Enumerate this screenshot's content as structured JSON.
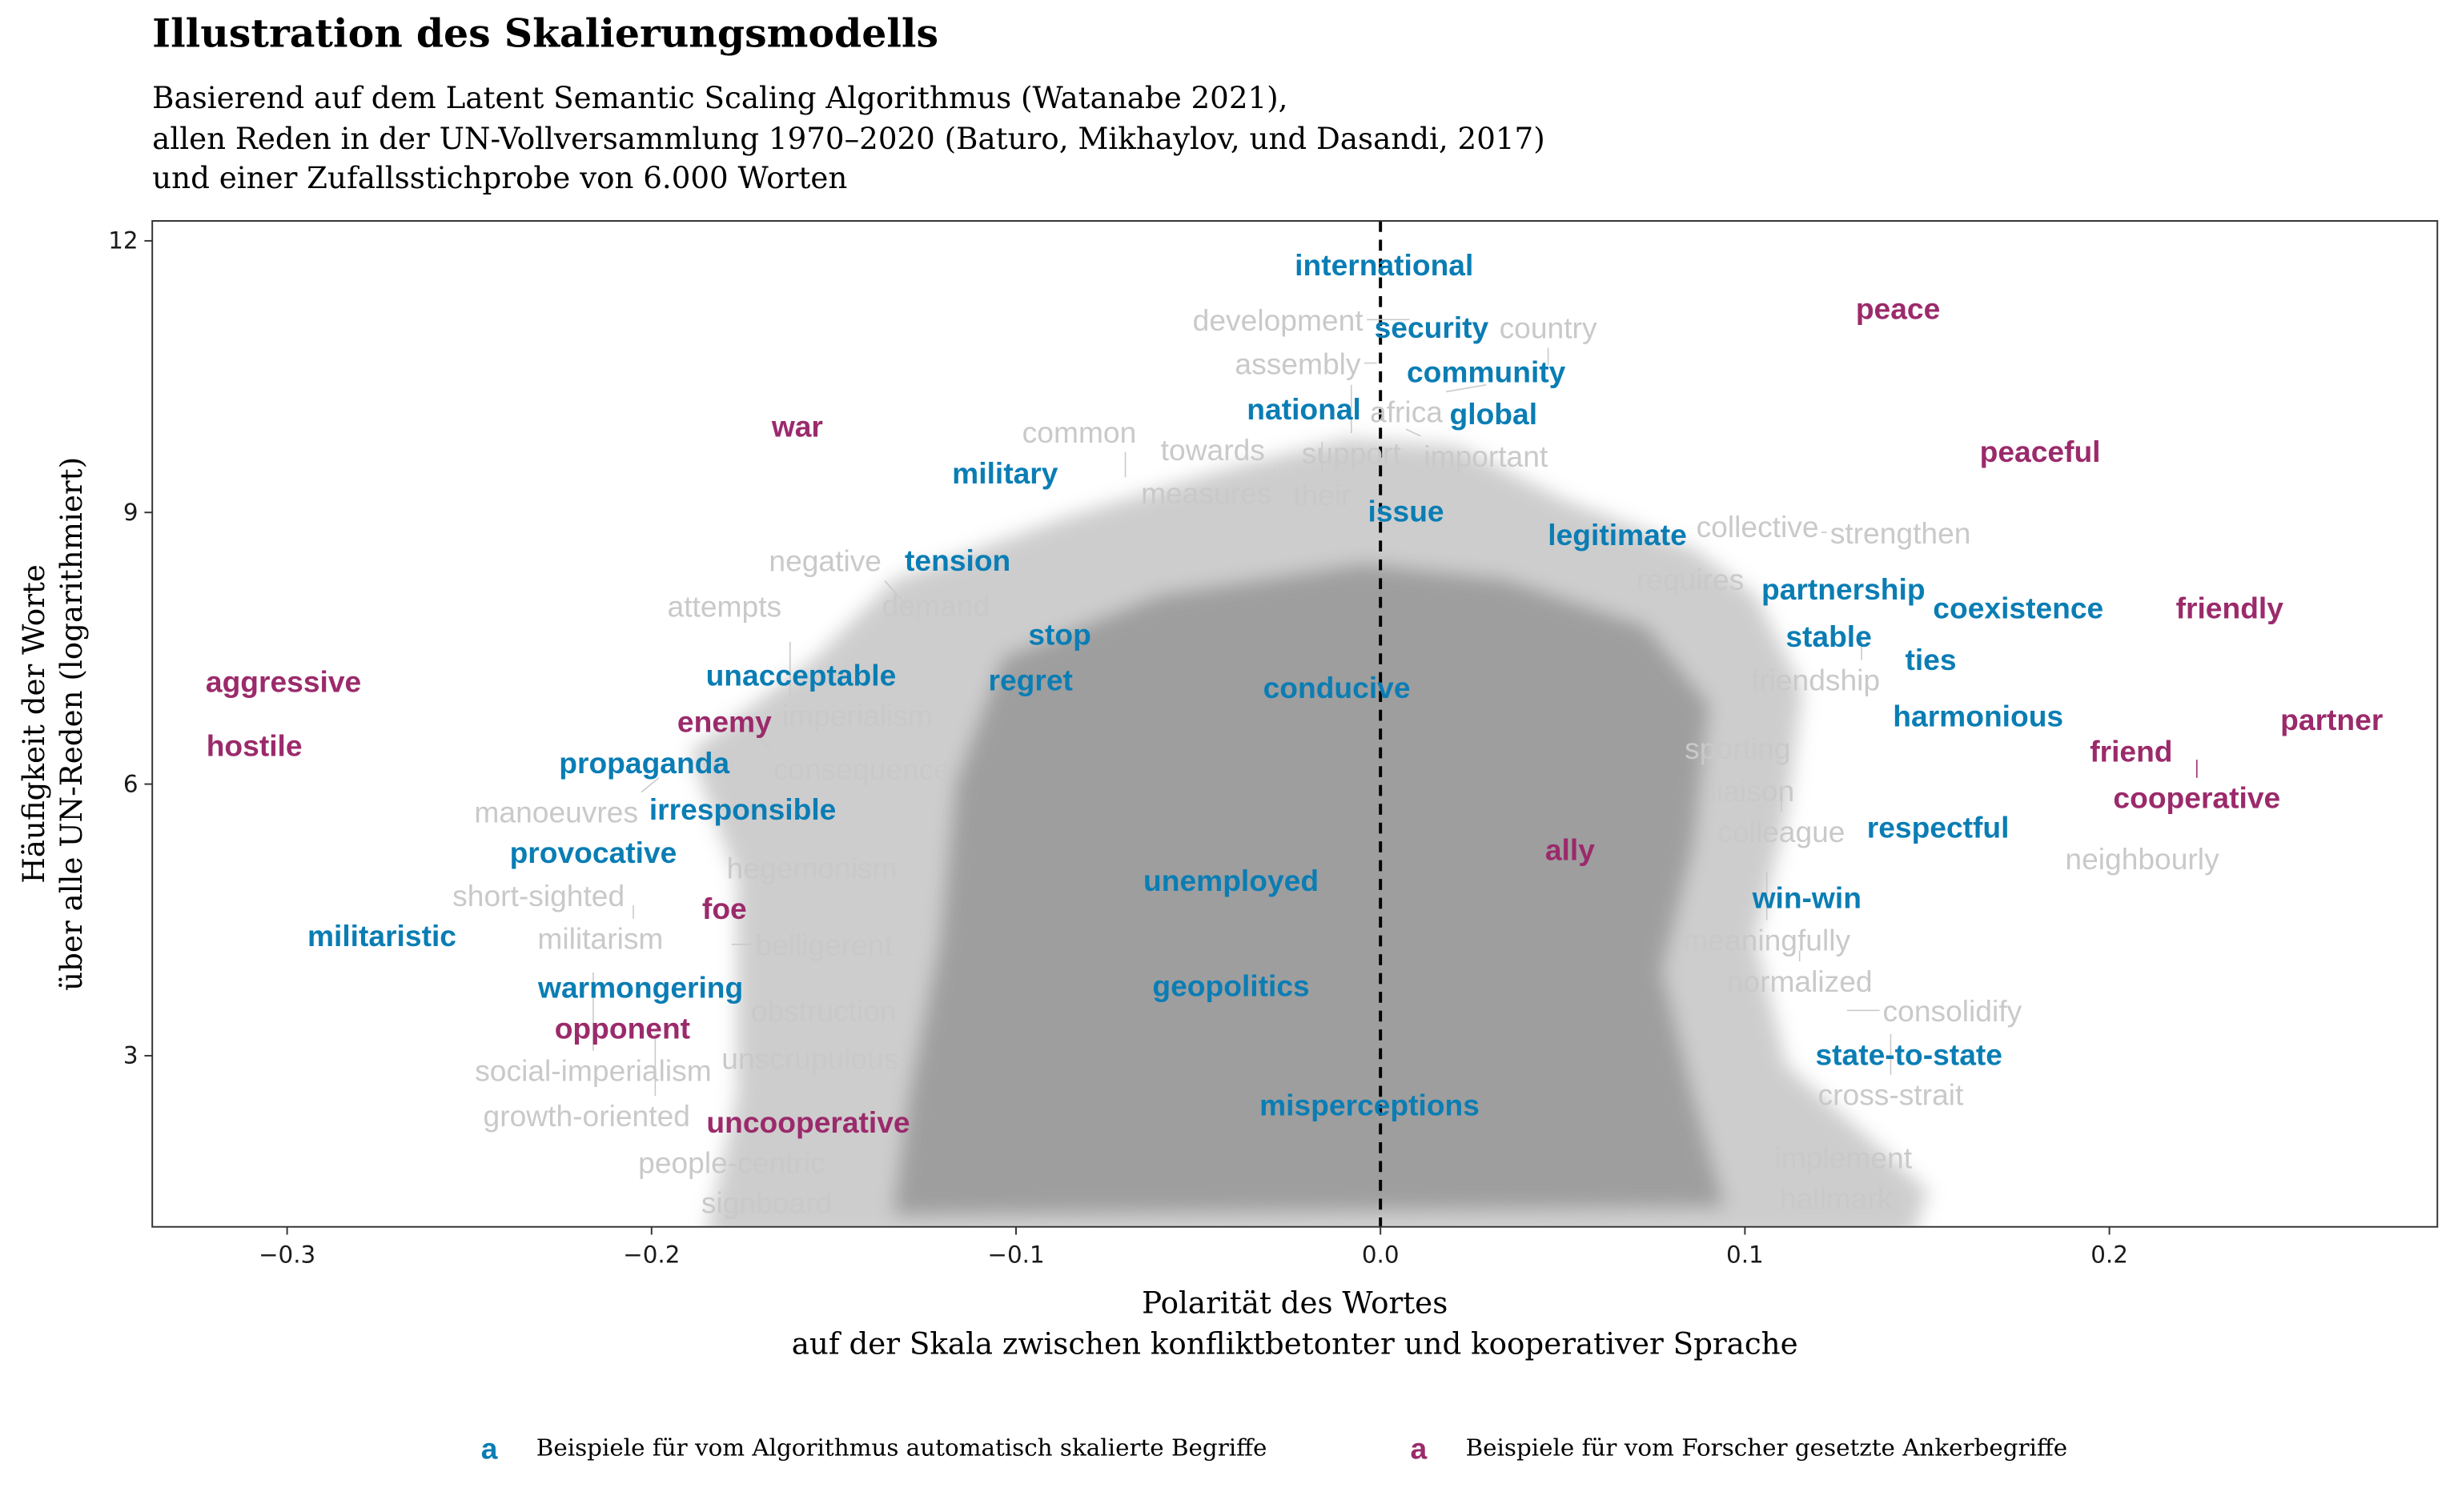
{
  "colors": {
    "auto": "#0a7db4",
    "anchor": "#9b2a6b",
    "other": "#c9c9c9",
    "mass": "#9c9c9c"
  },
  "header": {
    "title": "Illustration des Skalierungsmodells",
    "subtitle_lines": [
      "Basierend auf dem Latent Semantic Scaling Algorithmus (Watanabe 2021),",
      "allen Reden in der UN-Vollversammlung 1970–2020 (Baturo, Mikhaylov, und Dasandi, 2017)",
      "und einer Zufallsstichprobe von 6.000 Worten"
    ]
  },
  "legend": {
    "key_glyph": "a",
    "items": [
      {
        "label": "Beispiele für vom Algorithmus automatisch skalierte Begriffe",
        "group": "auto"
      },
      {
        "label": "Beispiele für vom Forscher gesetzte Ankerbegriffe",
        "group": "anchor"
      }
    ]
  },
  "chart_data": {
    "type": "scatter",
    "subtype": "text-labels",
    "title": "Illustration des Skalierungsmodells",
    "xlabel_lines": [
      "Polarität des Wortes",
      "auf der Skala zwischen konfliktbetonter und kooperativer Sprache"
    ],
    "ylabel_lines": [
      "Häufigkeit der Worte",
      "über alle UN-Reden (logarithmiert)"
    ],
    "xlim": [
      -0.337,
      0.29
    ],
    "ylim": [
      1.11,
      12.22
    ],
    "xticks": [
      -0.3,
      -0.2,
      -0.1,
      0.0,
      0.1,
      0.2
    ],
    "xtick_labels": [
      "−0.3",
      "−0.2",
      "−0.1",
      "0.0",
      "0.1",
      "0.2"
    ],
    "yticks": [
      3,
      6,
      9,
      12
    ],
    "ytick_labels": [
      "3",
      "6",
      "9",
      "12"
    ],
    "reference_line": {
      "x": 0,
      "style": "dashed"
    },
    "grid": false,
    "legend_position": "bottom",
    "words_auto": [
      {
        "w": "international",
        "x": 0.001,
        "y": 11.74
      },
      {
        "w": "security",
        "x": 0.014,
        "y": 11.05
      },
      {
        "w": "community",
        "x": 0.029,
        "y": 10.56
      },
      {
        "w": "global",
        "x": 0.031,
        "y": 10.18
      },
      {
        "w": "national",
        "x": -0.021,
        "y": 10.15
      },
      {
        "w": "military",
        "x": -0.103,
        "y": 9.44
      },
      {
        "w": "issue",
        "x": 0.007,
        "y": 9.02
      },
      {
        "w": "legitimate",
        "x": 0.065,
        "y": 8.76
      },
      {
        "w": "tension",
        "x": -0.116,
        "y": 8.48
      },
      {
        "w": "partnership",
        "x": 0.127,
        "y": 8.16
      },
      {
        "w": "coexistence",
        "x": 0.175,
        "y": 7.95
      },
      {
        "w": "stable",
        "x": 0.123,
        "y": 7.72
      },
      {
        "w": "ties",
        "x": 0.151,
        "y": 7.38
      },
      {
        "w": "stop",
        "x": -0.088,
        "y": 7.66
      },
      {
        "w": "regret",
        "x": -0.096,
        "y": 7.24
      },
      {
        "w": "unacceptable",
        "x": -0.159,
        "y": 7.21
      },
      {
        "w": "conducive",
        "x": -0.012,
        "y": 7.07
      },
      {
        "w": "harmonious",
        "x": 0.164,
        "y": 6.76
      },
      {
        "w": "propaganda",
        "x": -0.202,
        "y": 6.24
      },
      {
        "w": "irresponsible",
        "x": -0.175,
        "y": 5.73
      },
      {
        "w": "respectful",
        "x": 0.153,
        "y": 5.53
      },
      {
        "w": "provocative",
        "x": -0.216,
        "y": 5.25
      },
      {
        "w": "unemployed",
        "x": -0.041,
        "y": 4.94
      },
      {
        "w": "win-win",
        "x": 0.117,
        "y": 4.75
      },
      {
        "w": "militaristic",
        "x": -0.274,
        "y": 4.33
      },
      {
        "w": "warmongering",
        "x": -0.203,
        "y": 3.76
      },
      {
        "w": "geopolitics",
        "x": -0.041,
        "y": 3.78
      },
      {
        "w": "state-to-state",
        "x": 0.145,
        "y": 3.02
      },
      {
        "w": "misperceptions",
        "x": -0.003,
        "y": 2.46
      }
    ],
    "words_anchor": [
      {
        "w": "peace",
        "x": 0.142,
        "y": 11.26
      },
      {
        "w": "war",
        "x": -0.16,
        "y": 9.96
      },
      {
        "w": "peaceful",
        "x": 0.181,
        "y": 9.68
      },
      {
        "w": "friendly",
        "x": 0.233,
        "y": 7.95
      },
      {
        "w": "aggressive",
        "x": -0.301,
        "y": 7.14
      },
      {
        "w": "partner",
        "x": 0.261,
        "y": 6.72
      },
      {
        "w": "hostile",
        "x": -0.309,
        "y": 6.43
      },
      {
        "w": "enemy",
        "x": -0.18,
        "y": 6.53
      },
      {
        "w": "friend",
        "x": 0.206,
        "y": 6.37
      },
      {
        "w": "cooperative",
        "x": 0.224,
        "y": 6.27
      },
      {
        "w": "ally",
        "x": 0.052,
        "y": 5.28
      },
      {
        "w": "foe",
        "x": -0.18,
        "y": 4.63
      },
      {
        "w": "opponent",
        "x": -0.208,
        "y": 3.31
      },
      {
        "w": "uncooperative",
        "x": -0.157,
        "y": 2.27
      }
    ],
    "words_other": [
      {
        "w": "development",
        "x": 0.008,
        "y": 11.13
      },
      {
        "w": "assembly",
        "x": -0.001,
        "y": 10.65
      },
      {
        "w": "country",
        "x": 0.046,
        "y": 10.63
      },
      {
        "w": "support",
        "x": -0.008,
        "y": 10.41
      },
      {
        "w": "africa",
        "x": 0.029,
        "y": 10.41
      },
      {
        "w": "important",
        "x": 0.007,
        "y": 9.92
      },
      {
        "w": "towards",
        "x": -0.046,
        "y": 9.78
      },
      {
        "w": "their",
        "x": -0.016,
        "y": 9.78
      },
      {
        "w": "measures",
        "x": -0.029,
        "y": 9.47
      },
      {
        "w": "common",
        "x": -0.07,
        "y": 9.39
      },
      {
        "w": "collective",
        "x": 0.089,
        "y": 8.85
      },
      {
        "w": "strengthen",
        "x": 0.121,
        "y": 8.78
      },
      {
        "w": "requires",
        "x": 0.085,
        "y": 8.35
      },
      {
        "w": "attempts",
        "x": -0.18,
        "y": 7.97
      },
      {
        "w": "demand",
        "x": -0.122,
        "y": 7.98
      },
      {
        "w": "negative",
        "x": -0.126,
        "y": 7.79
      },
      {
        "w": "friendship",
        "x": 0.132,
        "y": 7.66
      },
      {
        "w": "imperialism",
        "x": -0.162,
        "y": 7.57
      },
      {
        "w": "consequence",
        "x": -0.175,
        "y": 6.69
      },
      {
        "w": "sporting",
        "x": 0.098,
        "y": 6.4
      },
      {
        "w": "manoeuvres",
        "x": -0.198,
        "y": 6.07
      },
      {
        "w": "liaison",
        "x": 0.102,
        "y": 6.1
      },
      {
        "w": "colleague",
        "x": 0.11,
        "y": 5.98
      },
      {
        "w": "hegemonism",
        "x": -0.156,
        "y": 5.08
      },
      {
        "w": "meaningfully",
        "x": 0.106,
        "y": 5.03
      },
      {
        "w": "neighbourly",
        "x": 0.209,
        "y": 5.18
      },
      {
        "w": "short-sighted",
        "x": -0.231,
        "y": 4.94
      },
      {
        "w": "militarism",
        "x": -0.205,
        "y": 4.66
      },
      {
        "w": "belligerent",
        "x": -0.178,
        "y": 4.23
      },
      {
        "w": "normalized",
        "x": 0.115,
        "y": 4.16
      },
      {
        "w": "social-imperialism",
        "x": -0.216,
        "y": 3.92
      },
      {
        "w": "consolidify",
        "x": 0.128,
        "y": 3.5
      },
      {
        "w": "obstruction",
        "x": -0.16,
        "y": 3.5
      },
      {
        "w": "growth-oriented",
        "x": -0.199,
        "y": 3.24
      },
      {
        "w": "cross-strait",
        "x": 0.14,
        "y": 3.24
      },
      {
        "w": "unscrupulous",
        "x": -0.169,
        "y": 2.81
      },
      {
        "w": "people-centric",
        "x": -0.178,
        "y": 1.91
      },
      {
        "w": "implement",
        "x": 0.127,
        "y": 1.88
      },
      {
        "w": "signboard",
        "x": -0.163,
        "y": 1.6
      },
      {
        "w": "hallmark",
        "x": 0.125,
        "y": 1.6
      }
    ]
  }
}
